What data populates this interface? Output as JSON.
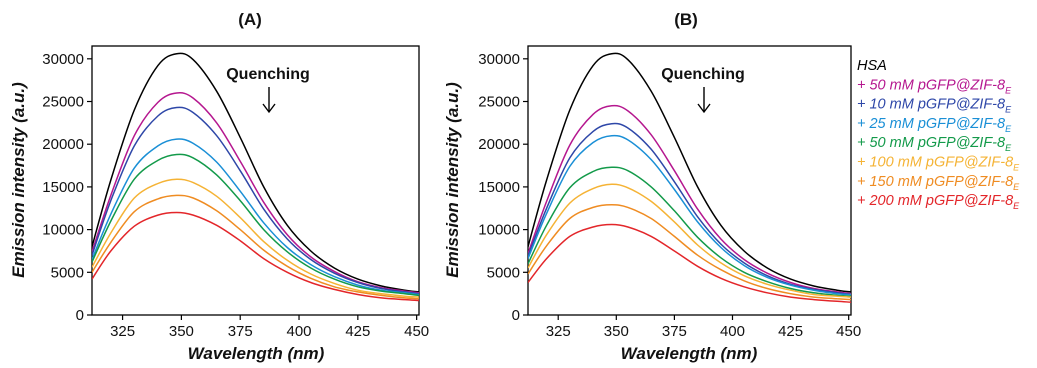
{
  "chart_data": [
    {
      "type": "line",
      "panel_label": "(A)",
      "xlabel": "Wavelength (nm)",
      "ylabel": "Emission intensity (a.u.)",
      "xlim": [
        312,
        451
      ],
      "ylim": [
        0,
        31500
      ],
      "xticks": [
        325,
        350,
        375,
        400,
        425,
        450
      ],
      "yticks": [
        0,
        5000,
        10000,
        15000,
        20000,
        25000,
        30000
      ],
      "annotation": "Quenching",
      "x": [
        312,
        320,
        330,
        340,
        348,
        355,
        365,
        375,
        385,
        395,
        405,
        415,
        425,
        435,
        445,
        451
      ],
      "series": [
        {
          "name": "HSA",
          "color": "#000000",
          "values": [
            8000,
            15800,
            24000,
            29200,
            30600,
            29900,
            26200,
            20800,
            15000,
            10500,
            7500,
            5500,
            4200,
            3400,
            2900,
            2700
          ]
        },
        {
          "name": "+ 50 mM pGFP@ZIF-8",
          "color": "#b5178f",
          "values": [
            7400,
            14000,
            21000,
            24900,
            26000,
            25400,
            22500,
            18000,
            13200,
            9400,
            6800,
            5100,
            3900,
            3200,
            2800,
            2600
          ]
        },
        {
          "name": "+ 10 mM pGFP@ZIF-8",
          "color": "#2e47a8",
          "values": [
            7000,
            13400,
            19800,
            23300,
            24300,
            23700,
            21000,
            16900,
            12400,
            8900,
            6500,
            4900,
            3800,
            3100,
            2700,
            2500
          ]
        },
        {
          "name": "+ 25 mM pGFP@ZIF-8",
          "color": "#1a8fd6",
          "values": [
            6500,
            11800,
            17200,
            19800,
            20600,
            20100,
            17900,
            14500,
            10800,
            7900,
            5900,
            4500,
            3500,
            2900,
            2600,
            2400
          ]
        },
        {
          "name": "+ 50 mM pGFP@ZIF-8",
          "color": "#139a4a",
          "values": [
            6200,
            11000,
            15900,
            18100,
            18800,
            18400,
            16400,
            13400,
            10000,
            7400,
            5500,
            4200,
            3300,
            2800,
            2500,
            2300
          ]
        },
        {
          "name": "+ 100 mM pGFP@ZIF-8",
          "color": "#f5b335",
          "values": [
            5600,
            9600,
            13700,
            15400,
            15900,
            15500,
            13900,
            11400,
            8600,
            6400,
            4800,
            3700,
            2900,
            2500,
            2200,
            2100
          ]
        },
        {
          "name": "+ 150 mM pGFP@ZIF-8",
          "color": "#ef8c22",
          "values": [
            5000,
            8500,
            12100,
            13600,
            14000,
            13700,
            12200,
            10000,
            7600,
            5700,
            4300,
            3300,
            2700,
            2300,
            2000,
            1900
          ]
        },
        {
          "name": "+ 200 mM pGFP@ZIF-8",
          "color": "#e3262a",
          "values": [
            4200,
            7500,
            10400,
            11700,
            12000,
            11700,
            10500,
            8700,
            6600,
            5000,
            3800,
            3000,
            2400,
            2000,
            1800,
            1700
          ]
        }
      ]
    },
    {
      "type": "line",
      "panel_label": "(B)",
      "xlabel": "Wavelength (nm)",
      "ylabel": "Emission intensity (a.u.)",
      "xlim": [
        312,
        451
      ],
      "ylim": [
        0,
        31500
      ],
      "xticks": [
        325,
        350,
        375,
        400,
        425,
        450
      ],
      "yticks": [
        0,
        5000,
        10000,
        15000,
        20000,
        25000,
        30000
      ],
      "annotation": "Quenching",
      "x": [
        312,
        320,
        330,
        340,
        348,
        355,
        365,
        375,
        385,
        395,
        405,
        415,
        425,
        435,
        445,
        451
      ],
      "series": [
        {
          "name": "HSA",
          "color": "#000000",
          "values": [
            8000,
            15800,
            24000,
            29200,
            30600,
            29900,
            26200,
            20800,
            15000,
            10500,
            7500,
            5500,
            4200,
            3400,
            2900,
            2700
          ]
        },
        {
          "name": "+ 50 mM pGFP@ZIF-8",
          "color": "#b5178f",
          "values": [
            7200,
            13300,
            19900,
            23500,
            24500,
            23900,
            21100,
            16900,
            12400,
            8900,
            6500,
            4900,
            3800,
            3100,
            2700,
            2500
          ]
        },
        {
          "name": "+ 10 mM pGFP@ZIF-8",
          "color": "#2e47a8",
          "values": [
            6900,
            12500,
            18400,
            21500,
            22400,
            21900,
            19400,
            15600,
            11500,
            8300,
            6100,
            4600,
            3600,
            3000,
            2600,
            2400
          ]
        },
        {
          "name": "+ 25 mM pGFP@ZIF-8",
          "color": "#1a8fd6",
          "values": [
            6600,
            11900,
            17400,
            20200,
            21000,
            20500,
            18200,
            14700,
            10900,
            7900,
            5800,
            4400,
            3500,
            2900,
            2500,
            2400
          ]
        },
        {
          "name": "+ 50 mM pGFP@ZIF-8",
          "color": "#139a4a",
          "values": [
            6000,
            10500,
            14900,
            16800,
            17300,
            16900,
            15000,
            12200,
            9100,
            6700,
            5000,
            3900,
            3100,
            2600,
            2300,
            2200
          ]
        },
        {
          "name": "+ 100 mM pGFP@ZIF-8",
          "color": "#f5b335",
          "values": [
            5500,
            9400,
            13100,
            14800,
            15300,
            14900,
            13300,
            10900,
            8200,
            6100,
            4600,
            3600,
            2900,
            2400,
            2200,
            2100
          ]
        },
        {
          "name": "+ 150 mM pGFP@ZIF-8",
          "color": "#ef8c22",
          "values": [
            4800,
            8100,
            11300,
            12600,
            12900,
            12600,
            11300,
            9200,
            7000,
            5300,
            4000,
            3100,
            2500,
            2100,
            1900,
            1800
          ]
        },
        {
          "name": "+ 200 mM pGFP@ZIF-8",
          "color": "#e3262a",
          "values": [
            3800,
            6600,
            9200,
            10300,
            10600,
            10300,
            9200,
            7500,
            5700,
            4300,
            3300,
            2600,
            2100,
            1800,
            1600,
            1500
          ]
        }
      ]
    }
  ],
  "legend": {
    "placement": "right",
    "entries": [
      {
        "prefix": "HSA",
        "sub": "",
        "color": "#000000"
      },
      {
        "prefix": "+ 50 mM pGFP@ZIF-8",
        "sub": "E",
        "color": "#b5178f"
      },
      {
        "prefix": "+ 10 mM pGFP@ZIF-8",
        "sub": "E",
        "color": "#2e47a8"
      },
      {
        "prefix": "+ 25 mM pGFP@ZIF-8",
        "sub": "E",
        "color": "#1a8fd6"
      },
      {
        "prefix": "+ 50 mM pGFP@ZIF-8",
        "sub": "E",
        "color": "#139a4a"
      },
      {
        "prefix": "+ 100 mM pGFP@ZIF-8",
        "sub": "E",
        "color": "#f5b335"
      },
      {
        "prefix": "+ 150 mM pGFP@ZIF-8",
        "sub": "E",
        "color": "#ef8c22"
      },
      {
        "prefix": "+ 200 mM pGFP@ZIF-8",
        "sub": "E",
        "color": "#e3262a"
      }
    ]
  }
}
